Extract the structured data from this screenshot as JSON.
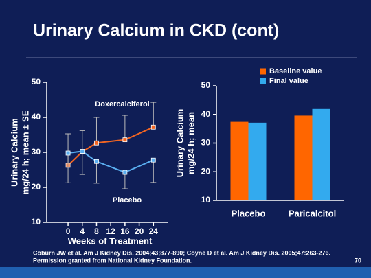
{
  "slide": {
    "title": "Urinary Calcium in CKD (cont)",
    "citation": [
      "Coburn JW et al. Am J Kidney Dis. 2004;43;877-890; Coyne D et al. Am J Kidney Dis. 2005;47:263-276.",
      "Permission granted from National Kidney Foundation."
    ],
    "page_number": "70"
  },
  "chart_data": [
    {
      "type": "line",
      "xlabel": "Weeks of Treatment",
      "ylabel": [
        "Urinary Calcium",
        "mg/24 h; mean ± SE"
      ],
      "xlim": [
        -6,
        28
      ],
      "xticks": [
        0,
        4,
        8,
        12,
        16,
        20,
        24
      ],
      "ylim": [
        10,
        50
      ],
      "yticks": [
        10,
        20,
        30,
        40,
        50
      ],
      "x": [
        0,
        4,
        8,
        16,
        24
      ],
      "series": [
        {
          "name": "Doxercalciferol",
          "color": "#f26522",
          "values": [
            26.3,
            30.2,
            32.7,
            33.6,
            37.2
          ],
          "errors": [
            9,
            6,
            7.3,
            7,
            7.1
          ],
          "error_direction": "up"
        },
        {
          "name": "Placebo",
          "color": "#5aaef0",
          "values": [
            29.8,
            30.3,
            27.4,
            24.3,
            27.8
          ],
          "errors": [
            8.5,
            6.6,
            6.2,
            4.7,
            6.4
          ],
          "error_direction": "down"
        }
      ]
    },
    {
      "type": "bar",
      "ylabel": [
        "Urinary Calcium",
        "mg/24 h; mean"
      ],
      "categories": [
        "Placebo",
        "Paricalcitol"
      ],
      "ylim": [
        10,
        50
      ],
      "yticks": [
        10,
        20,
        30,
        40,
        50
      ],
      "series": [
        {
          "name": "Baseline value",
          "color": "#ff6600",
          "values": [
            37.4,
            39.6
          ]
        },
        {
          "name": "Final value",
          "color": "#33aaee",
          "values": [
            37.1,
            41.9
          ]
        }
      ]
    }
  ]
}
